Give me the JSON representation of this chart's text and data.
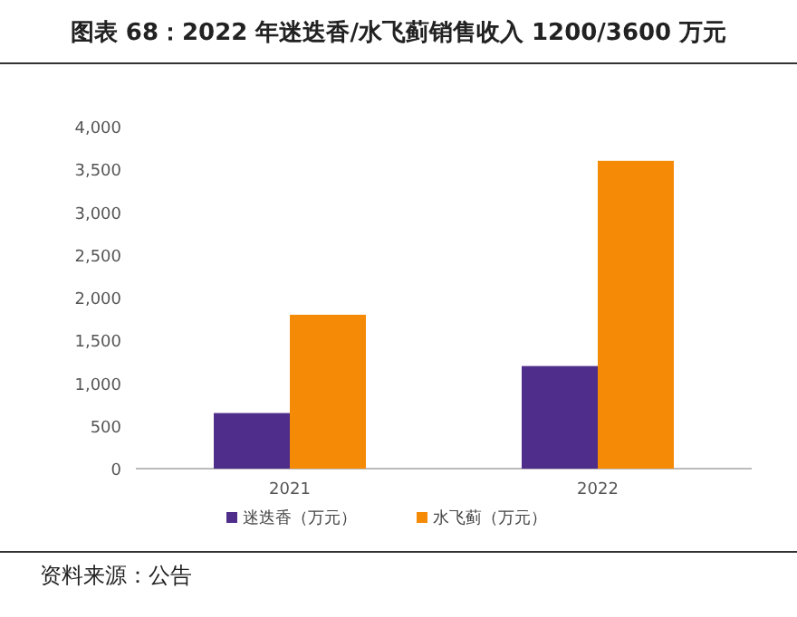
{
  "chart_data": {
    "type": "bar",
    "title": "图表 68：2022 年迷迭香/水飞蓟销售收入 1200/3600 万元",
    "categories": [
      "2021",
      "2022"
    ],
    "series": [
      {
        "name": "迷迭香（万元）",
        "color": "#4f2d8a",
        "values": [
          650,
          1200
        ]
      },
      {
        "name": "水飞蓟（万元）",
        "color": "#f58a07",
        "values": [
          1800,
          3600
        ]
      }
    ],
    "ylim": [
      0,
      4000
    ],
    "yticks": [
      0,
      {
        "value": 500,
        "label": "500"
      },
      {
        "value": 1000,
        "label": "1,000"
      },
      {
        "value": 1500,
        "label": "1,500"
      },
      {
        "value": 2000,
        "label": "2,000"
      },
      {
        "value": 2500,
        "label": "2,500"
      },
      {
        "value": 3000,
        "label": "3,000"
      },
      {
        "value": 3500,
        "label": "3,500"
      },
      {
        "value": 4000,
        "label": "4,000"
      }
    ],
    "grid": false,
    "legend": "bottom",
    "annotations": [
      "资料来源：公告"
    ]
  }
}
